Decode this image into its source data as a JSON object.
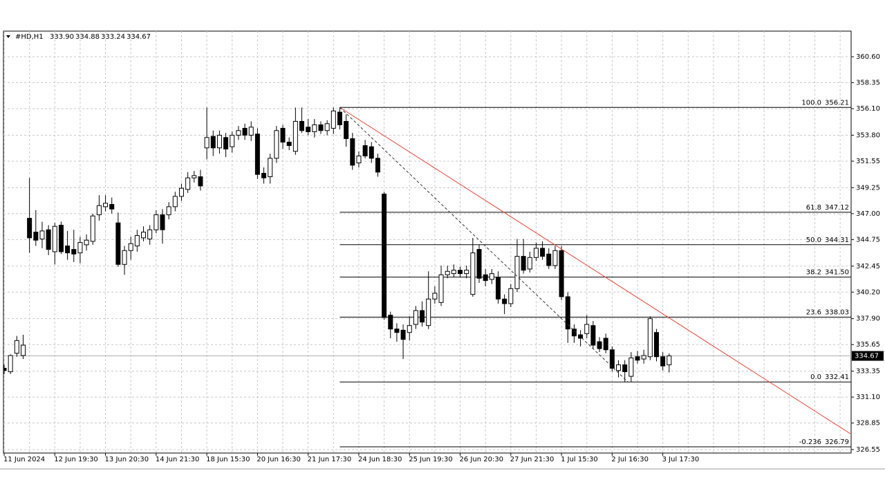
{
  "chart_data": {
    "type": "candlestick",
    "header": {
      "symbol": "#HD,H1",
      "ohlc": [
        "333.90",
        "334.88",
        "333.24",
        "334.67"
      ]
    },
    "categories": [
      "11 Jun 2024",
      null,
      null,
      null,
      null,
      null,
      null,
      null,
      "12 Jun 19:30",
      null,
      null,
      null,
      null,
      null,
      null,
      null,
      "13 Jun 20:30",
      null,
      null,
      null,
      null,
      null,
      null,
      null,
      "14 Jun 21:30",
      null,
      null,
      null,
      null,
      null,
      null,
      null,
      "18 Jun 15:30",
      null,
      null,
      null,
      null,
      null,
      null,
      null,
      "20 Jun 16:30",
      null,
      null,
      null,
      null,
      null,
      null,
      null,
      "21 Jun 17:30",
      null,
      null,
      null,
      null,
      null,
      null,
      null,
      "24 Jun 18:30",
      null,
      null,
      null,
      null,
      null,
      null,
      null,
      "25 Jun 19:30",
      null,
      null,
      null,
      null,
      null,
      null,
      null,
      "26 Jun 20:30",
      null,
      null,
      null,
      null,
      null,
      null,
      null,
      "27 Jun 21:30",
      null,
      null,
      null,
      null,
      null,
      null,
      null,
      "1 Jul 15:30",
      null,
      null,
      null,
      null,
      null,
      null,
      null,
      "2 Jul 16:30",
      null,
      null,
      null,
      null,
      null,
      null,
      null,
      "3 Jul 17:30",
      null
    ],
    "open": [
      333.6,
      333.3,
      334.9,
      334.7,
      346.6,
      345.4,
      344.8,
      345.6,
      343.7,
      346.0,
      344.2,
      343.9,
      343.6,
      344.3,
      344.6,
      346.9,
      347.6,
      347.8,
      346.2,
      342.6,
      343.8,
      344.2,
      344.9,
      344.8,
      345.6,
      346.9,
      346.9,
      347.6,
      348.5,
      349.1,
      350.1,
      350.2,
      352.7,
      353.7,
      352.7,
      353.6,
      352.8,
      353.8,
      354.4,
      353.8,
      353.9,
      350.5,
      350.2,
      351.8,
      354.4,
      353.2,
      352.4,
      355.0,
      354.5,
      354.1,
      354.7,
      354.2,
      354.4,
      355.8,
      355.0,
      353.5,
      351.4,
      352.9,
      352.8,
      351.8,
      348.7,
      338.2,
      337.0,
      336.9,
      336.7,
      337.4,
      338.6,
      337.3,
      339.6,
      339.3,
      341.7,
      341.8,
      342.1,
      341.8,
      340.0,
      343.9,
      341.7,
      341.3,
      341.5,
      339.6,
      339.2,
      340.5,
      343.3,
      342.2,
      343.2,
      344.0,
      343.5,
      342.5,
      343.8,
      339.8,
      337.0,
      336.5,
      336.6,
      337.3,
      335.9,
      336.2,
      335.2,
      333.4,
      333.9,
      332.9,
      334.6,
      334.4,
      334.6,
      336.7,
      334.6,
      333.9
    ],
    "high": [
      333.9,
      334.8,
      336.4,
      336.5,
      350.1,
      347.3,
      346.3,
      346.0,
      346.2,
      346.3,
      345.5,
      345.6,
      345.0,
      345.2,
      347.0,
      348.6,
      348.6,
      348.4,
      347.1,
      344.2,
      345.0,
      345.6,
      345.9,
      346.0,
      347.3,
      347.4,
      348.0,
      348.9,
      349.6,
      350.6,
      350.7,
      350.8,
      356.2,
      354.2,
      354.2,
      354.0,
      354.1,
      354.6,
      354.8,
      355.0,
      354.4,
      351.0,
      352.2,
      354.6,
      354.7,
      353.6,
      356.2,
      356.2,
      355.2,
      355.2,
      355.0,
      355.1,
      356.2,
      356.21,
      355.6,
      354.0,
      352.4,
      353.4,
      353.2,
      352.2,
      348.9,
      338.5,
      337.5,
      337.4,
      338.1,
      339.0,
      339.4,
      342.0,
      340.7,
      342.5,
      342.5,
      342.6,
      342.4,
      342.5,
      344.9,
      344.3,
      342.2,
      342.2,
      342.0,
      340.0,
      340.9,
      344.8,
      344.8,
      343.7,
      344.5,
      344.6,
      344.0,
      344.2,
      344.2,
      340.2,
      337.4,
      336.9,
      338.2,
      337.7,
      336.3,
      336.6,
      335.5,
      334.3,
      334.3,
      335.0,
      335.1,
      335.2,
      338.1,
      337.0,
      335.0,
      334.88
    ],
    "low": [
      333.1,
      333.1,
      334.6,
      334.4,
      343.6,
      344.2,
      344.0,
      343.4,
      342.6,
      343.5,
      343.0,
      342.8,
      342.7,
      343.8,
      344.3,
      346.4,
      347.2,
      347.0,
      342.4,
      341.7,
      343.0,
      343.7,
      344.6,
      344.3,
      345.3,
      344.4,
      346.5,
      347.2,
      348.1,
      348.8,
      349.7,
      349.0,
      351.7,
      352.0,
      352.2,
      351.9,
      352.3,
      353.4,
      353.4,
      353.3,
      350.0,
      349.6,
      349.6,
      351.4,
      352.6,
      352.5,
      352.1,
      354.0,
      353.8,
      353.6,
      353.9,
      353.8,
      353.9,
      354.3,
      352.8,
      350.8,
      351.0,
      351.8,
      351.4,
      350.2,
      337.8,
      336.2,
      335.9,
      334.4,
      336.0,
      337.0,
      337.2,
      337.0,
      339.2,
      339.0,
      341.4,
      341.5,
      341.5,
      341.4,
      339.8,
      341.0,
      340.7,
      340.9,
      339.2,
      338.3,
      338.9,
      340.2,
      341.8,
      341.9,
      342.9,
      343.0,
      342.2,
      342.2,
      339.5,
      335.8,
      335.8,
      335.5,
      336.2,
      335.3,
      335.0,
      334.9,
      333.3,
      332.8,
      332.41,
      332.41,
      334.0,
      334.0,
      334.3,
      334.2,
      333.4,
      333.24
    ],
    "close": [
      333.4,
      334.7,
      336.0,
      335.6,
      344.9,
      344.7,
      345.5,
      343.9,
      345.9,
      343.7,
      343.6,
      343.5,
      344.5,
      344.7,
      346.8,
      347.7,
      347.9,
      347.4,
      342.6,
      343.8,
      344.4,
      345.1,
      345.4,
      345.6,
      346.9,
      345.6,
      347.6,
      348.5,
      349.2,
      350.1,
      350.3,
      349.4,
      353.6,
      352.7,
      353.8,
      352.6,
      353.8,
      354.2,
      353.8,
      354.5,
      350.4,
      350.1,
      351.8,
      354.2,
      353.2,
      352.9,
      355.0,
      354.2,
      354.1,
      354.7,
      354.2,
      354.8,
      355.9,
      354.7,
      353.5,
      351.2,
      352.0,
      352.0,
      351.8,
      350.6,
      338.0,
      337.0,
      336.7,
      336.1,
      337.3,
      338.6,
      337.6,
      339.6,
      340.1,
      341.7,
      342.0,
      342.1,
      341.8,
      342.1,
      343.6,
      341.4,
      341.2,
      341.8,
      339.6,
      339.2,
      340.5,
      343.3,
      342.1,
      343.2,
      344.0,
      343.3,
      342.5,
      343.8,
      339.8,
      337.0,
      336.4,
      336.2,
      337.4,
      335.6,
      335.3,
      335.2,
      333.6,
      333.9,
      333.3,
      334.5,
      334.3,
      334.7,
      337.9,
      334.6,
      333.8,
      334.67
    ],
    "up_color": "#ffffff",
    "down_color": "#000000",
    "ylim": [
      326.25,
      362.82
    ],
    "yticks": [
      {
        "value": 360.6,
        "label": "360.60"
      },
      358.35,
      {
        "value": 356.1,
        "label": "356.10"
      },
      {
        "value": 353.8,
        "label": "353.80"
      },
      351.55,
      349.25,
      {
        "value": 347,
        "label": "347.00"
      },
      344.75,
      342.45,
      {
        "value": 340.2,
        "label": "340.20"
      },
      {
        "value": 337.9,
        "label": "337.90"
      },
      335.65,
      333.35,
      {
        "value": 331.1,
        "label": "331.10"
      },
      328.85,
      326.55
    ],
    "grid": true,
    "last_price": {
      "value": 334.67,
      "label": "334.67"
    },
    "lines": [
      {
        "style": "solid",
        "color": "#e2463c",
        "points": [
          [
            53,
            356.21
          ],
          [
            133.6,
            327.93
          ]
        ]
      },
      {
        "style": "dashed",
        "color": "#333333",
        "points": [
          [
            53,
            356.21
          ],
          [
            98.5,
            332.41
          ]
        ]
      }
    ],
    "fibonacci": {
      "anchor": 53,
      "color": "#000000",
      "levels": [
        {
          "ratio": {
            "value": 100,
            "label": "100.0"
          },
          "price": 356.21
        },
        {
          "ratio": 61.8,
          "price": 347.12
        },
        {
          "ratio": {
            "value": 50,
            "label": "50.0"
          },
          "price": 344.31
        },
        {
          "ratio": 38.2,
          "price": {
            "value": 341.5,
            "label": "341.50"
          }
        },
        {
          "ratio": 23.6,
          "price": 338.03
        },
        {
          "ratio": {
            "value": 0,
            "label": "0.0"
          },
          "price": 332.41
        },
        {
          "ratio": -0.236,
          "price": 326.79
        }
      ]
    }
  }
}
